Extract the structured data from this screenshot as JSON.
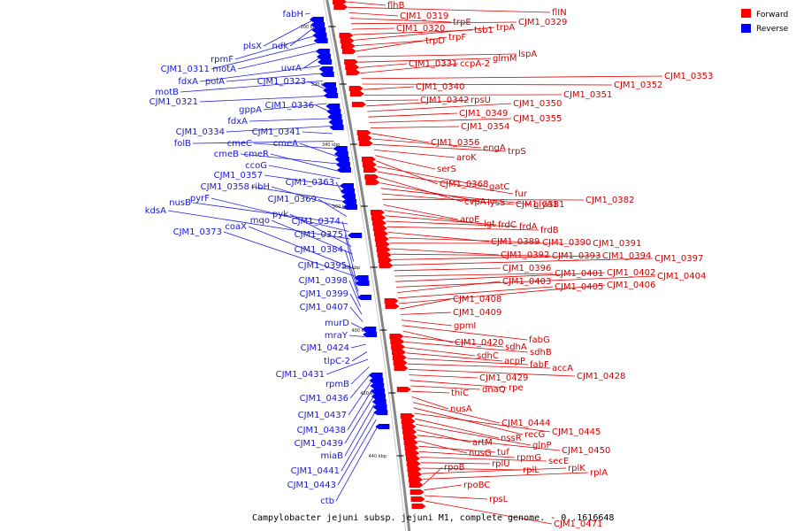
{
  "caption": "Campylobacter jejuni subsp. jejuni M1, complete genome. - 0..1616648",
  "legend": [
    {
      "label": "Forward",
      "color": "#ff0000"
    },
    {
      "label": "Reverse",
      "color": "#0000ff"
    }
  ],
  "colors": {
    "forward": "#ff0000",
    "reverse": "#0000ff",
    "forward_line": "#e00000",
    "reverse_line": "#2020e0",
    "backbone": "#888888"
  },
  "ticks": [
    "300 kbp",
    "320 kbp",
    "340 kbp",
    "360 kbp",
    "380 kbp",
    "400 kbp",
    "420 kbp",
    "440 kbp"
  ],
  "forward_labels": [
    "flhB",
    "flIN",
    "CJM1_0319",
    "trpE",
    "CJM1_0329",
    "CJM1_0320",
    "tsb1",
    "trpA",
    "trpD",
    "trpF",
    "lspA",
    "glmM",
    "CJM1_0331",
    "ccpA-2",
    "CJM1_0353",
    "CJM1_0352",
    "CJM1_0340",
    "CJM1_0351",
    "CJM1_0342",
    "rpsU",
    "CJM1_0350",
    "CJM1_0349",
    "CJM1_0355",
    "CJM1_0354",
    "CJM1_0356",
    "engA",
    "trpS",
    "aroK",
    "serS",
    "CJM1_0368",
    "gatC",
    "fur",
    "cvpA",
    "lysS",
    "glyA1",
    "CJM1_0381",
    "CJM1_0382",
    "aroE",
    "lgt",
    "frdC",
    "frdA",
    "frdB",
    "CJM1_0389",
    "CJM1_0390",
    "CJM1_0391",
    "CJM1_0392",
    "CJM1_0393",
    "CJM1_0394",
    "CJM1_0397",
    "CJM1_0396",
    "CJM1_0401",
    "CJM1_0402",
    "CJM1_0404",
    "CJM1_0403",
    "CJM1_0405",
    "CJM1_0406",
    "CJM1_0408",
    "CJM1_0409",
    "gpmI",
    "fabG",
    "CJM1_0420",
    "sdhA",
    "sdhB",
    "sdhC",
    "acpP",
    "fabF",
    "accA",
    "CJM1_0428",
    "CJM1_0429",
    "rpe",
    "dnaQ",
    "thiC",
    "nusA",
    "CJM1_0444",
    "recG",
    "CJM1_0445",
    "nssR",
    "glnP",
    "artM",
    "CJM1_0450",
    "nusG",
    "tuf",
    "rpmG",
    "secE",
    "rplU",
    "rplL",
    "rplK",
    "rplA",
    "rpoB",
    "rpoBC",
    "rpsL",
    "CJM1_0471"
  ],
  "reverse_labels": [
    "fabH",
    "plsX",
    "ndk",
    "rpmF",
    "CJM1_0311",
    "motA",
    "uvrA",
    "fdxA",
    "polA",
    "motB",
    "CJM1_0323",
    "CJM1_0321",
    "gppA",
    "CJM1_0336",
    "fdxA",
    "CJM1_0334",
    "CJM1_0341",
    "folB",
    "cmeC",
    "cmeA",
    "cmeB",
    "cmeR",
    "ccoG",
    "CJM1_0357",
    "CJM1_0363",
    "CJM1_0358",
    "ribH",
    "CJM1_0369",
    "nusB",
    "pyrF",
    "kdsA",
    "pyk",
    "mqo",
    "CJM1_0374",
    "coaX",
    "CJM1_0373",
    "CJM1_0375",
    "CJM1_0384",
    "CJM1_0395",
    "CJM1_0398",
    "CJM1_0399",
    "CJM1_0407",
    "murD",
    "mraY",
    "CJM1_0424",
    "tlpC-2",
    "CJM1_0431",
    "rpmB",
    "CJM1_0436",
    "CJM1_0437",
    "CJM1_0438",
    "CJM1_0439",
    "miaB",
    "CJM1_0441",
    "CJM1_0443",
    "ctb"
  ]
}
